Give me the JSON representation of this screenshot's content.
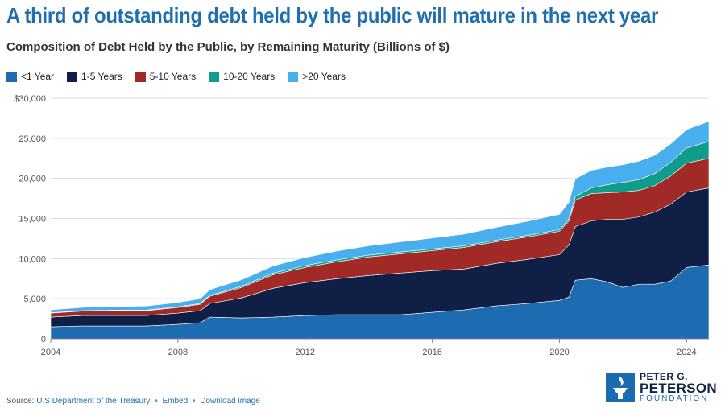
{
  "header": {
    "title": "A third of outstanding debt held by the public will mature in the next year",
    "subtitle": "Composition of Debt Held by the Public, by Remaining Maturity (Billions of $)"
  },
  "footer": {
    "source_label": "Source:",
    "source_link": "U.S Department of the Treasury",
    "embed_link": "Embed",
    "download_link": "Download image"
  },
  "logo": {
    "line1": "PETER G.",
    "line2": "PETERSON",
    "line3": "FOUNDATION"
  },
  "chart_data": {
    "type": "area",
    "stacked": true,
    "title": "Composition of Debt Held by the Public, by Remaining Maturity (Billions of $)",
    "xlim": [
      2004,
      2024.7
    ],
    "ylim": [
      0,
      30000
    ],
    "x_ticks": [
      2004,
      2008,
      2012,
      2016,
      2020,
      2024
    ],
    "y_ticks": [
      0,
      5000,
      10000,
      15000,
      20000,
      25000,
      30000
    ],
    "y_tick_labels": [
      "0",
      "5,000",
      "10,000",
      "15,000",
      "20,000",
      "25,000",
      "$30,000"
    ],
    "grid": "horizontal",
    "legend": "top-left",
    "x": [
      2004,
      2005,
      2006,
      2007,
      2008,
      2008.7,
      2009,
      2010,
      2011,
      2012,
      2013,
      2014,
      2015,
      2016,
      2017,
      2018,
      2019,
      2020,
      2020.3,
      2020.5,
      2021,
      2021.5,
      2022,
      2022.5,
      2023,
      2023.5,
      2024,
      2024.7
    ],
    "series": [
      {
        "name": "<1 Year",
        "color": "#1d6cb1",
        "values": [
          1500,
          1600,
          1600,
          1600,
          1800,
          2000,
          2700,
          2600,
          2700,
          2900,
          3000,
          3000,
          3000,
          3300,
          3600,
          4100,
          4400,
          4800,
          5200,
          7300,
          7500,
          7100,
          6400,
          6800,
          6800,
          7200,
          8900,
          9200
        ]
      },
      {
        "name": "1-5 Years",
        "color": "#0f1f45",
        "values": [
          1200,
          1300,
          1300,
          1300,
          1400,
          1500,
          1700,
          2500,
          3600,
          4100,
          4500,
          4900,
          5200,
          5200,
          5100,
          5300,
          5500,
          5700,
          6500,
          6700,
          7200,
          7800,
          8500,
          8400,
          9000,
          9600,
          9400,
          9600
        ]
      },
      {
        "name": "5-10 Years",
        "color": "#a22a26",
        "values": [
          500,
          550,
          600,
          600,
          700,
          800,
          900,
          1300,
          1700,
          1900,
          2100,
          2300,
          2400,
          2500,
          2700,
          2700,
          2800,
          2900,
          3000,
          3300,
          3400,
          3300,
          3400,
          3300,
          3300,
          3500,
          3600,
          3700
        ]
      },
      {
        "name": "10-20 Years",
        "color": "#0f9c8a",
        "values": [
          50,
          60,
          70,
          80,
          90,
          100,
          120,
          150,
          200,
          230,
          240,
          240,
          230,
          210,
          200,
          190,
          200,
          210,
          260,
          450,
          700,
          1000,
          1200,
          1350,
          1500,
          1700,
          1900,
          2100
        ]
      },
      {
        "name": ">20 Years",
        "color": "#48aeee",
        "values": [
          350,
          400,
          450,
          500,
          550,
          600,
          700,
          800,
          900,
          1000,
          1100,
          1150,
          1250,
          1350,
          1450,
          1600,
          1750,
          1900,
          2100,
          2200,
          2200,
          2200,
          2200,
          2300,
          2300,
          2300,
          2300,
          2500
        ]
      }
    ]
  }
}
